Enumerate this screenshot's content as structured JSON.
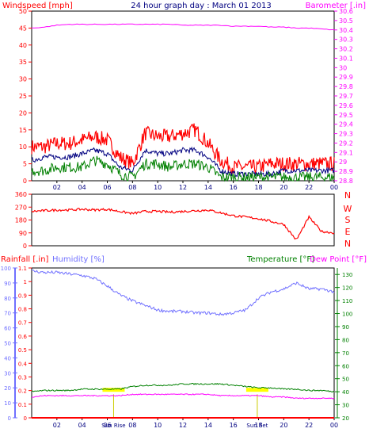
{
  "colors": {
    "background": "#ffffff",
    "frame": "#000000",
    "wind": "#ff0000",
    "wind_avg": "#000080",
    "wind_low": "#008000",
    "baro": "#ff00ff",
    "title": "#000080",
    "dir": "#ff0000",
    "rain": "#ff0000",
    "humidity": "#7070ff",
    "temp": "#008000",
    "dew": "#ff00ff",
    "sun": "#ffff00",
    "sun_bar": "#cccc00"
  },
  "chart_data": [
    {
      "type": "line",
      "title": "24 hour graph day : March 01 2013",
      "ylabel_left": "Windspeed [mph]",
      "ylabel_right": "Barometer [.in]",
      "x_ticks": [
        "02",
        "04",
        "06",
        "08",
        "10",
        "12",
        "14",
        "16",
        "18",
        "20",
        "22",
        "00"
      ],
      "ylim_left": [
        0,
        50
      ],
      "y_ticks_left": [
        "50",
        "45",
        "40",
        "35",
        "30",
        "25",
        "20",
        "15",
        "10",
        "5",
        "0"
      ],
      "ylim_right": [
        28.8,
        30.6
      ],
      "y_ticks_right": [
        "30.6",
        "30.5",
        "30.4",
        "30.3",
        "30.2",
        "30.1",
        "30",
        "29.9",
        "29.8",
        "29.7",
        "29.6",
        "29.5",
        "29.4",
        "29.3",
        "29.2",
        "29.1",
        "29",
        "28.9",
        "28.8"
      ],
      "x_hours": [
        0,
        1,
        2,
        3,
        4,
        5,
        6,
        7,
        8,
        9,
        10,
        11,
        12,
        13,
        14,
        15,
        16,
        17,
        18,
        19,
        20,
        21,
        22,
        23,
        24
      ],
      "series": [
        {
          "key": "gust",
          "values": [
            10,
            10,
            11,
            11,
            12,
            13,
            12,
            7,
            5,
            14,
            13,
            13,
            14,
            15,
            11,
            6,
            4,
            4,
            4,
            5,
            5,
            5,
            5,
            5,
            5
          ]
        },
        {
          "key": "avg",
          "values": [
            6,
            7,
            7,
            7,
            8,
            9,
            8,
            4,
            3,
            9,
            8,
            8,
            9,
            9,
            7,
            3,
            2,
            2,
            2,
            2,
            3,
            3,
            3,
            3,
            3
          ]
        },
        {
          "key": "low",
          "values": [
            3,
            3,
            4,
            4,
            4,
            6,
            5,
            2,
            1,
            5,
            5,
            4,
            5,
            5,
            4,
            1,
            1,
            1,
            1,
            1,
            1,
            1,
            1,
            1,
            1
          ]
        },
        {
          "key": "baro",
          "values": [
            30.42,
            30.43,
            30.45,
            30.46,
            30.46,
            30.46,
            30.46,
            30.46,
            30.46,
            30.46,
            30.46,
            30.46,
            30.45,
            30.45,
            30.45,
            30.45,
            30.44,
            30.44,
            30.44,
            30.43,
            30.43,
            30.42,
            30.42,
            30.41,
            30.4
          ]
        }
      ]
    },
    {
      "type": "line",
      "ylim": [
        0,
        360
      ],
      "y_ticks": [
        "360",
        "270",
        "180",
        "90",
        "0"
      ],
      "compass": [
        "N",
        "W",
        "S",
        "E",
        "N"
      ],
      "x_hours": [
        0,
        1,
        2,
        3,
        4,
        5,
        6,
        7,
        8,
        9,
        10,
        11,
        12,
        13,
        14,
        15,
        16,
        17,
        18,
        19,
        20,
        21,
        22,
        23,
        24
      ],
      "series": [
        {
          "key": "direction",
          "values": [
            240,
            245,
            250,
            250,
            255,
            250,
            255,
            240,
            225,
            240,
            240,
            235,
            240,
            245,
            250,
            230,
            210,
            200,
            190,
            170,
            150,
            40,
            200,
            100,
            90
          ]
        }
      ]
    },
    {
      "type": "line",
      "ylabel_rain": "Rainfall [.in]",
      "ylabel_humidity": "Humidity [%]",
      "ylabel_temp": "Temperature [°F]",
      "ylabel_dew": "Dew Point [°F]",
      "x_ticks": [
        "02",
        "04",
        "06",
        "08",
        "10",
        "12",
        "14",
        "16",
        "18",
        "20",
        "22",
        "00"
      ],
      "sun_labels": [
        "Sun Rise",
        "Sun Set"
      ],
      "ylim_rain": [
        0,
        1.1
      ],
      "y_ticks_rain": [
        "1.1",
        "1",
        "0.9",
        "0.8",
        "0.7",
        "0.6",
        "0.5",
        "0.4",
        "0.3",
        "0.2",
        "0.1",
        "0"
      ],
      "ylim_humidity": [
        0,
        100
      ],
      "y_ticks_humidity": [
        "100",
        "90",
        "80",
        "70",
        "60",
        "50",
        "40",
        "30",
        "20",
        "10",
        "0"
      ],
      "ylim_temp": [
        20,
        135
      ],
      "y_ticks_temp": [
        "130",
        "120",
        "110",
        "100",
        "90",
        "80",
        "70",
        "60",
        "50",
        "40",
        "30",
        "20"
      ],
      "x_hours": [
        0,
        1,
        2,
        3,
        4,
        5,
        6,
        7,
        8,
        9,
        10,
        11,
        12,
        13,
        14,
        15,
        16,
        17,
        18,
        19,
        20,
        21,
        22,
        23,
        24
      ],
      "series": [
        {
          "key": "humidity",
          "values": [
            98,
            97,
            97,
            96,
            95,
            93,
            88,
            82,
            78,
            75,
            72,
            71,
            71,
            70,
            70,
            69,
            70,
            72,
            80,
            84,
            86,
            90,
            86,
            86,
            84
          ]
        },
        {
          "key": "temp",
          "values": [
            40,
            41,
            41,
            41,
            42,
            42,
            42,
            42,
            44,
            45,
            45,
            45,
            46,
            46,
            46,
            46,
            45,
            44,
            43,
            43,
            42,
            42,
            41,
            41,
            40
          ]
        },
        {
          "key": "dew",
          "values": [
            36,
            37,
            37,
            37,
            37,
            37,
            37,
            37,
            38,
            38,
            38,
            38,
            38,
            38,
            38,
            37,
            37,
            37,
            37,
            36,
            36,
            35,
            35,
            35,
            35
          ]
        },
        {
          "key": "rain",
          "values": [
            0,
            0,
            0,
            0,
            0,
            0,
            0,
            0,
            0,
            0,
            0,
            0,
            0,
            0,
            0,
            0,
            0,
            0,
            0,
            0,
            0,
            0,
            0,
            0,
            0
          ]
        }
      ],
      "sun_hours": [
        6.5,
        17.9
      ]
    }
  ]
}
